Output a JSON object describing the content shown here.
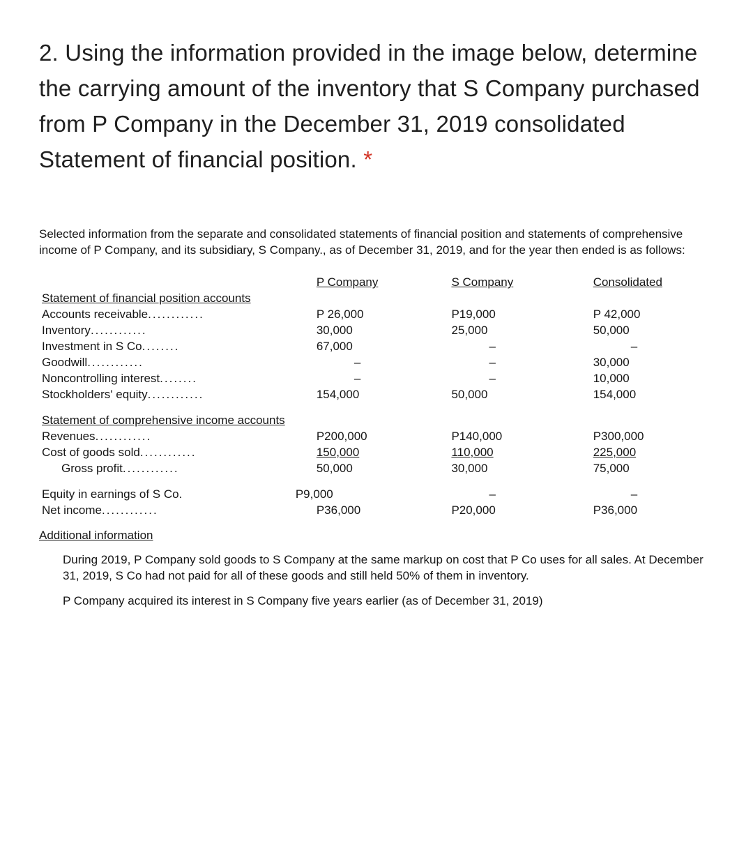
{
  "question": {
    "text": "2. Using the information provided in the image below, determine the carrying amount of the inventory that S Company purchased from P Company in the December 31, 2019 consolidated Statement of financial position. ",
    "required_mark": "*"
  },
  "intro": "Selected information from the separate and consolidated statements of financial position and statements of comprehensive income of P Company, and its subsidiary, S Company., as of December 31, 2019, and for the year then ended is as follows:",
  "headers": {
    "p": "P Company",
    "s": "S Company",
    "c": "Consolidated"
  },
  "sect1": "Statement of financial position accounts",
  "rows1": {
    "ar": {
      "label": "Accounts receivable",
      "p": "P 26,000",
      "s": "P19,000",
      "c": "P 42,000"
    },
    "inv": {
      "label": "Inventory",
      "p": "30,000",
      "s": "25,000",
      "c": "50,000"
    },
    "invs": {
      "label": "Investment in S Co",
      "p": "67,000",
      "s": "–",
      "c": "–"
    },
    "gw": {
      "label": "Goodwill",
      "p": "–",
      "s": "–",
      "c": "30,000"
    },
    "nci": {
      "label": "Noncontrolling interest",
      "p": "–",
      "s": "–",
      "c": "10,000"
    },
    "se": {
      "label": "Stockholders' equity",
      "p": "154,000",
      "s": "50,000",
      "c": "154,000"
    }
  },
  "sect2": "Statement of comprehensive income accounts",
  "rows2": {
    "rev": {
      "label": "Revenues",
      "p": "P200,000",
      "s": "P140,000",
      "c": "P300,000"
    },
    "cogs": {
      "label": "Cost of goods sold",
      "p": "150,000",
      "s": "110,000",
      "c": "225,000"
    },
    "gp": {
      "label": "Gross profit",
      "p": "50,000",
      "s": "30,000",
      "c": "75,000"
    }
  },
  "rows3": {
    "eq": {
      "label": "Equity in earnings of S Co.",
      "p": "P9,000",
      "s": "–",
      "c": "–"
    },
    "ni": {
      "label": "Net income",
      "p": "P36,000",
      "s": "P20,000",
      "c": "P36,000"
    }
  },
  "additional": {
    "heading": "Additional information",
    "p1": "During 2019, P Company sold goods to S Company at the same markup on cost that P Co uses for all sales. At December 31, 2019, S Co had not paid for all of these goods and still held 50% of them in inventory.",
    "p2": "P Company acquired its interest in S Company five years earlier (as of December 31, 2019)"
  }
}
